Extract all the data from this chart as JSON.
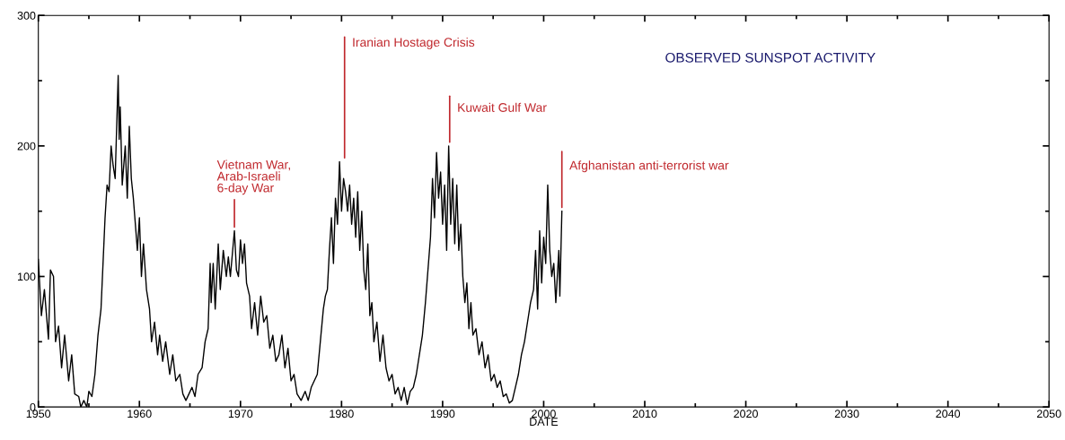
{
  "chart_data": {
    "type": "line",
    "title": "OBSERVED SUNSPOT ACTIVITY",
    "xlabel": "DATE",
    "x": [
      1950.0,
      1950.3,
      1950.6,
      1951.0,
      1951.2,
      1951.5,
      1951.7,
      1952.0,
      1952.3,
      1952.6,
      1953.0,
      1953.3,
      1953.6,
      1954.0,
      1954.2,
      1954.5,
      1954.8,
      1955.0,
      1955.3,
      1955.6,
      1955.9,
      1956.2,
      1956.4,
      1956.6,
      1956.8,
      1957.0,
      1957.2,
      1957.4,
      1957.6,
      1957.9,
      1958.0,
      1958.1,
      1958.3,
      1958.6,
      1958.8,
      1959.0,
      1959.2,
      1959.4,
      1959.6,
      1959.8,
      1960.0,
      1960.2,
      1960.4,
      1960.7,
      1961.0,
      1961.2,
      1961.5,
      1961.8,
      1962.0,
      1962.3,
      1962.6,
      1963.0,
      1963.3,
      1963.6,
      1964.0,
      1964.3,
      1964.6,
      1964.9,
      1965.2,
      1965.5,
      1965.8,
      1966.2,
      1966.5,
      1966.8,
      1967.0,
      1967.1,
      1967.3,
      1967.5,
      1967.8,
      1968.0,
      1968.3,
      1968.6,
      1968.8,
      1969.0,
      1969.4,
      1969.6,
      1969.8,
      1970.0,
      1970.2,
      1970.4,
      1970.6,
      1970.9,
      1971.1,
      1971.4,
      1971.7,
      1972.0,
      1972.3,
      1972.6,
      1972.9,
      1973.2,
      1973.5,
      1973.8,
      1974.1,
      1974.4,
      1974.7,
      1975.0,
      1975.3,
      1975.6,
      1976.0,
      1976.4,
      1976.7,
      1977.0,
      1977.3,
      1977.6,
      1977.9,
      1978.2,
      1978.4,
      1978.6,
      1978.8,
      1979.0,
      1979.2,
      1979.4,
      1979.6,
      1979.8,
      1980.0,
      1980.2,
      1980.4,
      1980.6,
      1980.8,
      1981.0,
      1981.2,
      1981.4,
      1981.6,
      1981.8,
      1982.0,
      1982.2,
      1982.4,
      1982.6,
      1982.8,
      1983.0,
      1983.2,
      1983.5,
      1983.8,
      1984.1,
      1984.4,
      1984.7,
      1985.0,
      1985.3,
      1985.6,
      1985.9,
      1986.2,
      1986.5,
      1986.8,
      1987.1,
      1987.4,
      1987.7,
      1988.0,
      1988.3,
      1988.6,
      1988.8,
      1989.0,
      1989.2,
      1989.4,
      1989.6,
      1989.8,
      1990.0,
      1990.2,
      1990.4,
      1990.6,
      1990.8,
      1991.0,
      1991.2,
      1991.4,
      1991.6,
      1991.8,
      1992.0,
      1992.2,
      1992.4,
      1992.6,
      1992.8,
      1993.0,
      1993.3,
      1993.6,
      1993.9,
      1994.2,
      1994.5,
      1994.8,
      1995.1,
      1995.4,
      1995.7,
      1996.0,
      1996.3,
      1996.6,
      1996.9,
      1997.2,
      1997.5,
      1997.8,
      1998.1,
      1998.4,
      1998.7,
      1999.0,
      1999.2,
      1999.4,
      1999.6,
      1999.8,
      2000.0,
      2000.2,
      2000.4,
      2000.6,
      2000.8,
      2001.0,
      2001.2,
      2001.5,
      2001.6,
      2001.8
    ],
    "series": [
      {
        "color": "#000000",
        "values": [
          113,
          70,
          90,
          52,
          105,
          100,
          50,
          62,
          30,
          55,
          20,
          40,
          10,
          8,
          0,
          5,
          0,
          12,
          8,
          25,
          55,
          75,
          110,
          145,
          170,
          165,
          200,
          185,
          175,
          254,
          205,
          230,
          170,
          200,
          160,
          215,
          175,
          160,
          140,
          120,
          145,
          100,
          125,
          90,
          75,
          50,
          65,
          40,
          55,
          35,
          50,
          25,
          40,
          20,
          25,
          10,
          5,
          10,
          15,
          8,
          25,
          30,
          50,
          60,
          110,
          80,
          110,
          75,
          125,
          90,
          120,
          100,
          115,
          100,
          135,
          105,
          100,
          128,
          110,
          125,
          95,
          85,
          60,
          80,
          55,
          85,
          65,
          70,
          45,
          55,
          35,
          40,
          55,
          30,
          45,
          20,
          25,
          10,
          5,
          12,
          5,
          15,
          20,
          25,
          50,
          75,
          85,
          90,
          120,
          145,
          110,
          160,
          140,
          188,
          150,
          175,
          165,
          150,
          170,
          140,
          160,
          130,
          165,
          120,
          150,
          105,
          90,
          125,
          70,
          80,
          50,
          65,
          35,
          55,
          30,
          20,
          25,
          10,
          15,
          5,
          15,
          2,
          12,
          15,
          25,
          40,
          55,
          80,
          110,
          130,
          175,
          145,
          195,
          160,
          180,
          140,
          170,
          120,
          200,
          140,
          175,
          125,
          170,
          120,
          140,
          100,
          80,
          95,
          60,
          80,
          55,
          60,
          40,
          50,
          30,
          40,
          20,
          25,
          15,
          20,
          8,
          10,
          3,
          5,
          15,
          25,
          40,
          50,
          65,
          80,
          90,
          120,
          75,
          135,
          95,
          130,
          110,
          170,
          120,
          100,
          110,
          80,
          120,
          85,
          150
        ]
      }
    ],
    "xlim": [
      1950,
      2050
    ],
    "ylim": [
      0,
      300
    ],
    "xticks": [
      1950,
      {
        "value": 1955,
        "label": null
      },
      1960,
      {
        "value": 1965,
        "label": null
      },
      1970,
      {
        "value": 1975,
        "label": null
      },
      1980,
      {
        "value": 1985,
        "label": null
      },
      1990,
      {
        "value": 1995,
        "label": null
      },
      2000,
      {
        "value": 2005,
        "label": null
      },
      2010,
      {
        "value": 2015,
        "label": null
      },
      2020,
      {
        "value": 2025,
        "label": null
      },
      2030,
      {
        "value": 2035,
        "label": null
      },
      2040,
      {
        "value": 2045,
        "label": null
      },
      2050
    ],
    "yticks": [
      0,
      {
        "value": 50,
        "label": null
      },
      100,
      {
        "value": 150,
        "label": null
      },
      200,
      {
        "value": 250,
        "label": null
      },
      300
    ],
    "annotations": [
      {
        "text": "Vietnam War,\nArab-Israeli\n6-day War",
        "x": 1969.4,
        "y": 135
      },
      {
        "text": "Iranian Hostage Crisis",
        "x": 1980.3,
        "y": 188
      },
      {
        "text": "Kuwait Gulf War",
        "x": 1990.7,
        "y": 200
      },
      {
        "text": "Afghanistan anti-terrorist war",
        "x": 2001.8,
        "y": 150
      }
    ]
  }
}
